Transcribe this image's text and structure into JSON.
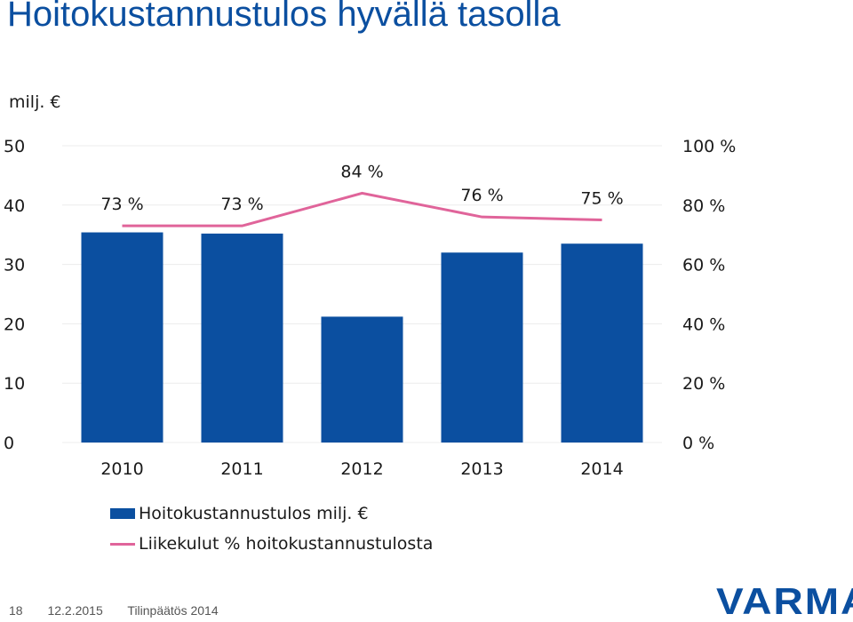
{
  "slide": {
    "title": "Hoitokustannustulos hyvällä tasolla",
    "unit_label": "milj. €"
  },
  "chart_data": {
    "type": "bar",
    "categories": [
      "2010",
      "2011",
      "2012",
      "2013",
      "2014"
    ],
    "series": [
      {
        "name": "Hoitokustannustulos milj. €",
        "type": "bar",
        "axis": "left",
        "values": [
          35.4,
          35.2,
          21.2,
          32.0,
          33.5
        ],
        "color": "#0b4fa0"
      },
      {
        "name": "Liikekulut % hoitokustannustulosta",
        "type": "line",
        "axis": "right",
        "values": [
          73,
          73,
          84,
          76,
          75
        ],
        "labels": [
          "73 %",
          "73 %",
          "84 %",
          "76 %",
          "75 %"
        ],
        "color": "#e0649a"
      }
    ],
    "y_left": {
      "ticks": [
        "0",
        "10",
        "20",
        "30",
        "40",
        "50"
      ],
      "ylim": [
        0,
        50
      ]
    },
    "y_right": {
      "ticks": [
        "0 %",
        "20 %",
        "40 %",
        "60 %",
        "80 %",
        "100 %"
      ],
      "ylim": [
        0,
        100
      ]
    },
    "grid": true,
    "legend_position": "bottom-left"
  },
  "footer": {
    "page_number": "18",
    "date": "12.2.2015",
    "doc_title": "Tilinpäätös 2014"
  },
  "logo": {
    "text": "VARMA"
  }
}
